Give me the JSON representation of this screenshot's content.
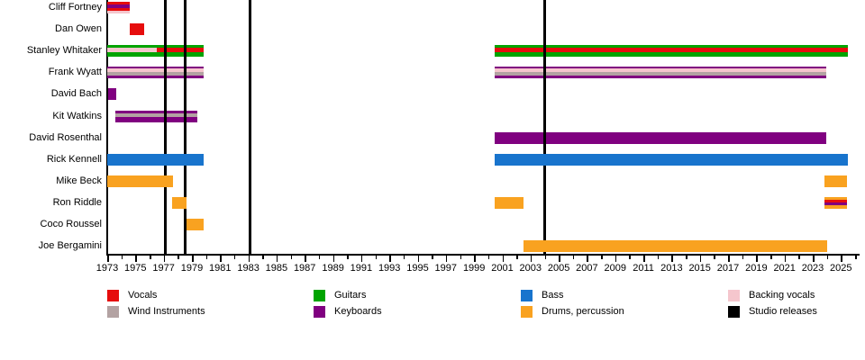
{
  "chart_data": {
    "type": "bar",
    "subtype": "band-membership-gantt-timeline",
    "title": "",
    "x_axis": {
      "year_start": 1973,
      "year_end": 2026,
      "label_interval": 2,
      "tick_labels": [
        "1973",
        "1975",
        "1977",
        "1979",
        "1981",
        "1983",
        "1985",
        "1987",
        "1989",
        "1991",
        "1993",
        "1995",
        "1997",
        "1999",
        "2001",
        "2003",
        "2005",
        "2007",
        "2009",
        "2011",
        "2013",
        "2015",
        "2017",
        "2019",
        "2021",
        "2023",
        "2025"
      ]
    },
    "colors": {
      "vocals": "#e60d0d",
      "wind": "#b3a2a2",
      "guitars": "#00a400",
      "keyboards": "#800080",
      "bass": "#1874cd",
      "drums": "#f9a220",
      "backing_vocals": "#f5c6cd",
      "studio_releases": "#000000"
    },
    "studio_release_years": [
      1977.1,
      1978.55,
      1983.1,
      2004.0
    ],
    "members": [
      {
        "name": "Cliff Fortney",
        "under_lines": false,
        "segments": [
          {
            "start": 1973.0,
            "end": 1974.6,
            "stripes": [
              {
                "c": "vocals",
                "h": 3
              },
              {
                "c": "keyboards",
                "h": 4
              },
              {
                "c": "vocals",
                "h": 3
              },
              {
                "c": "backing_vocals",
                "h": 3
              }
            ]
          }
        ]
      },
      {
        "name": "Dan Owen",
        "under_lines": false,
        "segments": [
          {
            "start": 1974.6,
            "end": 1975.62,
            "stripes": [
              {
                "c": "vocals",
                "h": 13
              }
            ]
          }
        ]
      },
      {
        "name": "Stanley Whitaker",
        "under_lines": true,
        "segments": [
          {
            "start": 1973.0,
            "end": 1976.5,
            "stripes": [
              {
                "c": "guitars",
                "h": 3
              },
              {
                "c": "backing_vocals",
                "h": 5
              },
              {
                "c": "guitars",
                "h": 5
              }
            ]
          },
          {
            "start": 1976.5,
            "end": 1979.85,
            "stripes": [
              {
                "c": "guitars",
                "h": 3
              },
              {
                "c": "vocals",
                "h": 5
              },
              {
                "c": "guitars",
                "h": 5
              }
            ]
          },
          {
            "start": 2000.45,
            "end": 2025.5,
            "stripes": [
              {
                "c": "guitars",
                "h": 3
              },
              {
                "c": "vocals",
                "h": 5
              },
              {
                "c": "guitars",
                "h": 5
              }
            ]
          }
        ]
      },
      {
        "name": "Frank Wyatt",
        "under_lines": true,
        "segments": [
          {
            "start": 1973.0,
            "end": 1979.85,
            "stripes": [
              {
                "c": "keyboards",
                "h": 2
              },
              {
                "c": "backing_vocals",
                "h": 4
              },
              {
                "c": "wind",
                "h": 4
              },
              {
                "c": "keyboards",
                "h": 3
              }
            ]
          },
          {
            "start": 2000.45,
            "end": 2023.95,
            "stripes": [
              {
                "c": "keyboards",
                "h": 2
              },
              {
                "c": "backing_vocals",
                "h": 4
              },
              {
                "c": "wind",
                "h": 4
              },
              {
                "c": "keyboards",
                "h": 3
              }
            ]
          }
        ]
      },
      {
        "name": "David Bach",
        "under_lines": false,
        "segments": [
          {
            "start": 1973.05,
            "end": 1973.62,
            "stripes": [
              {
                "c": "keyboards",
                "h": 13
              }
            ]
          }
        ]
      },
      {
        "name": "Kit Watkins",
        "under_lines": true,
        "segments": [
          {
            "start": 1973.55,
            "end": 1979.4,
            "stripes": [
              {
                "c": "keyboards",
                "h": 3
              },
              {
                "c": "wind",
                "h": 4
              },
              {
                "c": "keyboards",
                "h": 6
              }
            ]
          }
        ]
      },
      {
        "name": "David Rosenthal",
        "under_lines": true,
        "segments": [
          {
            "start": 2000.45,
            "end": 2023.95,
            "stripes": [
              {
                "c": "keyboards",
                "h": 13
              }
            ]
          }
        ]
      },
      {
        "name": "Rick Kennell",
        "under_lines": false,
        "segments": [
          {
            "start": 1973.0,
            "end": 1979.85,
            "stripes": [
              {
                "c": "bass",
                "h": 13
              }
            ]
          },
          {
            "start": 2000.45,
            "end": 2025.5,
            "stripes": [
              {
                "c": "bass",
                "h": 13
              }
            ]
          }
        ]
      },
      {
        "name": "Mike Beck",
        "under_lines": false,
        "segments": [
          {
            "start": 1973.0,
            "end": 1977.68,
            "stripes": [
              {
                "c": "drums",
                "h": 13
              }
            ]
          },
          {
            "start": 2023.85,
            "end": 2025.45,
            "stripes": [
              {
                "c": "drums",
                "h": 13
              }
            ]
          }
        ]
      },
      {
        "name": "Ron Riddle",
        "under_lines": false,
        "segments": [
          {
            "start": 1977.6,
            "end": 1978.6,
            "stripes": [
              {
                "c": "drums",
                "h": 13
              }
            ]
          },
          {
            "start": 2000.45,
            "end": 2002.5,
            "stripes": [
              {
                "c": "drums",
                "h": 13
              }
            ]
          },
          {
            "start": 2023.85,
            "end": 2025.45,
            "stripes": [
              {
                "c": "drums",
                "h": 3
              },
              {
                "c": "vocals",
                "h": 3
              },
              {
                "c": "keyboards",
                "h": 3
              },
              {
                "c": "drums",
                "h": 4
              }
            ]
          }
        ]
      },
      {
        "name": "Coco Roussel",
        "under_lines": false,
        "segments": [
          {
            "start": 1978.62,
            "end": 1979.85,
            "stripes": [
              {
                "c": "drums",
                "h": 13
              }
            ]
          }
        ]
      },
      {
        "name": "Joe Bergamini",
        "under_lines": false,
        "segments": [
          {
            "start": 2002.5,
            "end": 2024.0,
            "stripes": [
              {
                "c": "drums",
                "h": 13
              }
            ]
          }
        ]
      }
    ],
    "legend": {
      "columns": [
        [
          {
            "label": "Vocals",
            "color": "vocals"
          },
          {
            "label": "Wind Instruments",
            "color": "wind"
          }
        ],
        [
          {
            "label": "Guitars",
            "color": "guitars"
          },
          {
            "label": "Keyboards",
            "color": "keyboards"
          }
        ],
        [
          {
            "label": "Bass",
            "color": "bass"
          },
          {
            "label": "Drums, percussion",
            "color": "drums"
          }
        ],
        [
          {
            "label": "Backing vocals",
            "color": "backing_vocals"
          },
          {
            "label": "Studio releases",
            "color": "studio_releases"
          }
        ]
      ]
    }
  }
}
